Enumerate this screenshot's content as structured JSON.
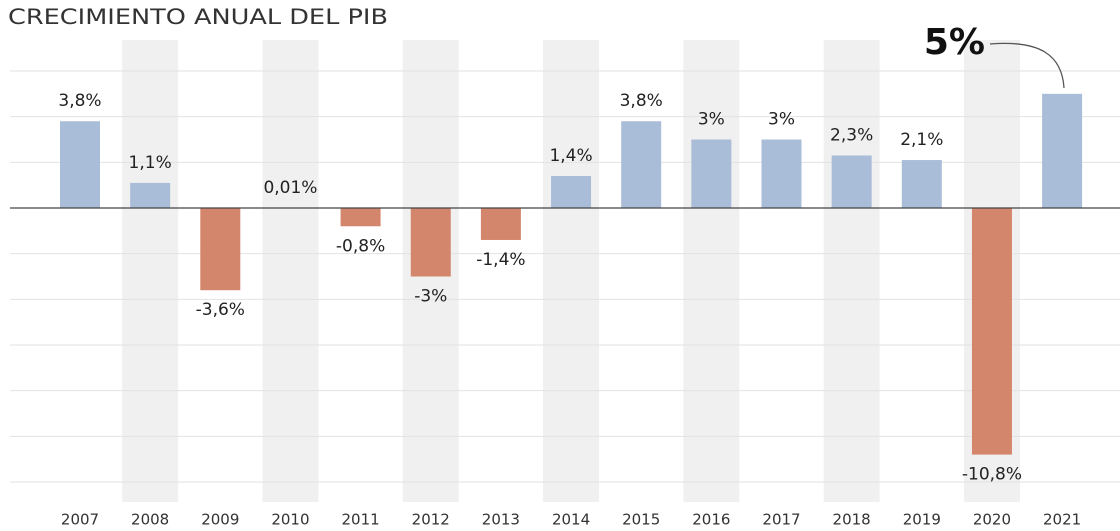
{
  "chart_data": {
    "type": "bar",
    "title": "CRECIMIENTO ANUAL DEL PIB",
    "categories": [
      "2007",
      "2008",
      "2009",
      "2010",
      "2011",
      "2012",
      "2013",
      "2014",
      "2015",
      "2016",
      "2017",
      "2018",
      "2019",
      "2020",
      "2021"
    ],
    "values": [
      3.8,
      1.1,
      -3.6,
      0.01,
      -0.8,
      -3,
      -1.4,
      1.4,
      3.8,
      3,
      3,
      2.3,
      2.1,
      -10.8,
      5
    ],
    "value_labels": [
      "3,8%",
      "1,1%",
      "-3,6%",
      "0,01%",
      "-0,8%",
      "-3%",
      "-1,4%",
      "1,4%",
      "3,8%",
      "3%",
      "3%",
      "2,3%",
      "2,1%",
      "-10,8%",
      "5%"
    ],
    "positive_color": "#a9bcd8",
    "negative_color": "#d4866c",
    "ylim": [
      -12,
      6
    ],
    "yticks": [
      -12,
      -10,
      -8,
      -6,
      -4,
      -2,
      0,
      2,
      4,
      6
    ],
    "grid": true
  }
}
